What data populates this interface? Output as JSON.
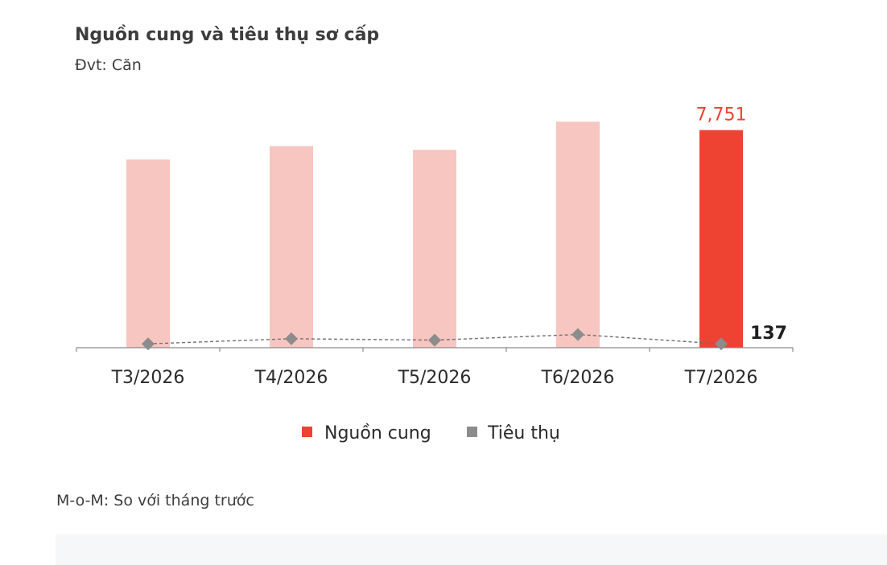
{
  "chart_data": {
    "type": "bar",
    "title": "Nguồn cung và tiêu thụ sơ cấp",
    "subtitle": "Đvt: Căn",
    "categories": [
      "T3/2026",
      "T4/2026",
      "T5/2026",
      "T6/2026",
      "T7/2026"
    ],
    "series": [
      {
        "name": "Nguồn cung",
        "kind": "bar",
        "values": [
          6700,
          7180,
          7050,
          8050,
          7751
        ],
        "highlight_color": "#ee4233",
        "muted_color": "#f8c6c1"
      },
      {
        "name": "Tiêu thụ",
        "kind": "line",
        "values": [
          137,
          320,
          270,
          470,
          137
        ],
        "color": "#8c8c8c"
      }
    ],
    "data_labels": {
      "supply_last": "7,751",
      "sales_last": "137"
    },
    "ylim": [
      0,
      8600
    ],
    "grid": false,
    "legend_position": "bottom"
  },
  "footnote": "M-o-M: So với tháng trước"
}
